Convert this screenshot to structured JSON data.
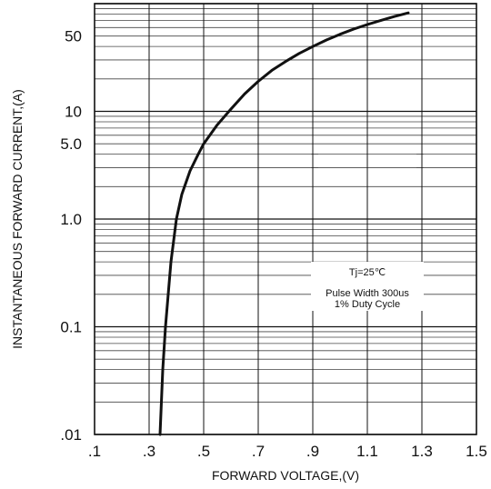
{
  "chart_data": {
    "type": "line",
    "title": "",
    "xlabel": "FORWARD VOLTAGE,(V)",
    "ylabel": "INSTANTANEOUS FORWARD CURRENT,(A)",
    "x_scale": "linear",
    "y_scale": "log",
    "xlim": [
      0.1,
      1.5
    ],
    "ylim": [
      0.01,
      100
    ],
    "grid": true,
    "x_ticks": [
      0.1,
      0.3,
      0.5,
      0.7,
      0.9,
      1.1,
      1.3,
      1.5
    ],
    "x_tick_labels": [
      ".1",
      ".3",
      ".5",
      ".7",
      ".9",
      "1.1",
      "1.3",
      "1.5"
    ],
    "y_ticks": [
      0.01,
      0.1,
      1.0,
      5.0,
      10,
      50
    ],
    "y_tick_labels": [
      ".01",
      "0.1",
      "1.0",
      "5.0",
      "10",
      "50"
    ],
    "series": [
      {
        "x": [
          0.34,
          0.345,
          0.35,
          0.36,
          0.37,
          0.38,
          0.4,
          0.42,
          0.45,
          0.48,
          0.5,
          0.55,
          0.6,
          0.65,
          0.7,
          0.75,
          0.8,
          0.85,
          0.9,
          0.95,
          1.0,
          1.05,
          1.1,
          1.15,
          1.2,
          1.25
        ],
        "y": [
          0.01,
          0.02,
          0.04,
          0.1,
          0.2,
          0.4,
          1.0,
          1.7,
          2.8,
          4.0,
          5.0,
          7.5,
          10.5,
          14.5,
          19.0,
          24.0,
          29.0,
          34.5,
          40.0,
          46.0,
          52.0,
          58.0,
          64.0,
          70.0,
          76.0,
          82.0
        ],
        "color": "#111111"
      }
    ],
    "annotations": [
      "Tj=25℃",
      "Pulse Width 300us",
      "1% Duty Cycle"
    ]
  }
}
